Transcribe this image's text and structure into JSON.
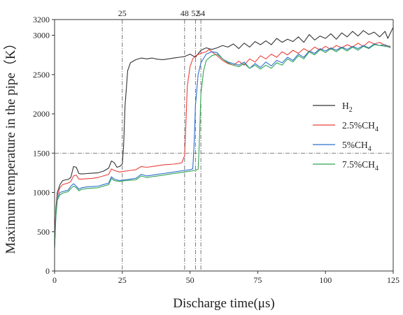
{
  "chart_data": {
    "type": "line",
    "title": "",
    "xlabel": "Discharge time(μs)",
    "ylabel": "Maximum temperature in the pipe（K）",
    "xlim": [
      0,
      125
    ],
    "ylim": [
      0,
      3200
    ],
    "xticks": [
      0,
      25,
      50,
      75,
      100,
      125
    ],
    "yticks": [
      0,
      500,
      1000,
      1500,
      2000,
      2500,
      3000,
      3200
    ],
    "grid": false,
    "legend_position": "right",
    "reference_lines": {
      "vertical": [
        {
          "x": 25,
          "label": "25"
        },
        {
          "x": 48,
          "label": "48"
        },
        {
          "x": 52,
          "label": "52"
        },
        {
          "x": 54,
          "label": "54"
        }
      ],
      "horizontal": [
        {
          "y": 1500
        }
      ]
    },
    "series": [
      {
        "name": "H2",
        "name_base": "H",
        "name_sub": "2",
        "color": "#333333",
        "points": [
          [
            0,
            380
          ],
          [
            0.5,
            800
          ],
          [
            1,
            1000
          ],
          [
            2,
            1100
          ],
          [
            3,
            1150
          ],
          [
            4,
            1160
          ],
          [
            5,
            1165
          ],
          [
            6,
            1190
          ],
          [
            7,
            1330
          ],
          [
            8,
            1320
          ],
          [
            9,
            1240
          ],
          [
            10,
            1235
          ],
          [
            12,
            1240
          ],
          [
            14,
            1245
          ],
          [
            16,
            1250
          ],
          [
            18,
            1270
          ],
          [
            20,
            1310
          ],
          [
            21,
            1400
          ],
          [
            22,
            1380
          ],
          [
            23,
            1320
          ],
          [
            24,
            1330
          ],
          [
            25,
            1360
          ],
          [
            25.5,
            1600
          ],
          [
            26,
            2100
          ],
          [
            27,
            2550
          ],
          [
            28,
            2650
          ],
          [
            30,
            2690
          ],
          [
            32,
            2710
          ],
          [
            34,
            2700
          ],
          [
            36,
            2710
          ],
          [
            38,
            2695
          ],
          [
            40,
            2690
          ],
          [
            42,
            2700
          ],
          [
            44,
            2710
          ],
          [
            46,
            2720
          ],
          [
            48,
            2730
          ],
          [
            50,
            2760
          ],
          [
            52,
            2720
          ],
          [
            54,
            2810
          ],
          [
            56,
            2840
          ],
          [
            58,
            2820
          ],
          [
            60,
            2840
          ],
          [
            62,
            2870
          ],
          [
            64,
            2850
          ],
          [
            66,
            2890
          ],
          [
            68,
            2830
          ],
          [
            70,
            2900
          ],
          [
            72,
            2850
          ],
          [
            74,
            2920
          ],
          [
            76,
            2880
          ],
          [
            78,
            2930
          ],
          [
            80,
            2880
          ],
          [
            82,
            2960
          ],
          [
            84,
            2910
          ],
          [
            86,
            2950
          ],
          [
            88,
            2920
          ],
          [
            90,
            2980
          ],
          [
            92,
            2910
          ],
          [
            94,
            3010
          ],
          [
            96,
            2940
          ],
          [
            98,
            2990
          ],
          [
            100,
            2960
          ],
          [
            102,
            3020
          ],
          [
            104,
            2950
          ],
          [
            106,
            3030
          ],
          [
            108,
            2980
          ],
          [
            110,
            3050
          ],
          [
            112,
            2990
          ],
          [
            114,
            3060
          ],
          [
            116,
            3010
          ],
          [
            118,
            3040
          ],
          [
            120,
            2980
          ],
          [
            122,
            3050
          ],
          [
            123,
            2960
          ],
          [
            124,
            3030
          ],
          [
            125,
            3100
          ]
        ]
      },
      {
        "name": "2.5%CH4",
        "name_base": "2.5%CH",
        "name_sub": "4",
        "color": "#e8403a",
        "points": [
          [
            0,
            320
          ],
          [
            0.5,
            760
          ],
          [
            1,
            960
          ],
          [
            2,
            1060
          ],
          [
            3,
            1100
          ],
          [
            4,
            1110
          ],
          [
            5,
            1120
          ],
          [
            6,
            1140
          ],
          [
            7,
            1210
          ],
          [
            8,
            1220
          ],
          [
            9,
            1170
          ],
          [
            10,
            1170
          ],
          [
            12,
            1175
          ],
          [
            14,
            1180
          ],
          [
            16,
            1190
          ],
          [
            18,
            1210
          ],
          [
            20,
            1230
          ],
          [
            21,
            1300
          ],
          [
            22,
            1280
          ],
          [
            24,
            1260
          ],
          [
            26,
            1270
          ],
          [
            28,
            1280
          ],
          [
            30,
            1290
          ],
          [
            32,
            1330
          ],
          [
            34,
            1320
          ],
          [
            36,
            1330
          ],
          [
            38,
            1340
          ],
          [
            40,
            1350
          ],
          [
            42,
            1355
          ],
          [
            44,
            1360
          ],
          [
            46,
            1370
          ],
          [
            47,
            1380
          ],
          [
            48,
            1470
          ],
          [
            48.5,
            1900
          ],
          [
            49,
            2350
          ],
          [
            50,
            2600
          ],
          [
            51,
            2700
          ],
          [
            52,
            2740
          ],
          [
            54,
            2770
          ],
          [
            56,
            2790
          ],
          [
            57,
            2820
          ],
          [
            58,
            2790
          ],
          [
            60,
            2740
          ],
          [
            62,
            2680
          ],
          [
            64,
            2640
          ],
          [
            66,
            2620
          ],
          [
            68,
            2670
          ],
          [
            70,
            2620
          ],
          [
            72,
            2700
          ],
          [
            74,
            2660
          ],
          [
            76,
            2740
          ],
          [
            78,
            2700
          ],
          [
            80,
            2760
          ],
          [
            82,
            2720
          ],
          [
            84,
            2790
          ],
          [
            86,
            2750
          ],
          [
            88,
            2810
          ],
          [
            90,
            2770
          ],
          [
            92,
            2830
          ],
          [
            94,
            2790
          ],
          [
            96,
            2850
          ],
          [
            98,
            2810
          ],
          [
            100,
            2860
          ],
          [
            102,
            2820
          ],
          [
            104,
            2870
          ],
          [
            106,
            2840
          ],
          [
            108,
            2880
          ],
          [
            110,
            2850
          ],
          [
            112,
            2900
          ],
          [
            114,
            2860
          ],
          [
            116,
            2920
          ],
          [
            118,
            2890
          ],
          [
            120,
            2910
          ],
          [
            122,
            2870
          ],
          [
            124,
            2860
          ]
        ]
      },
      {
        "name": "5%CH4",
        "name_base": "5%CH",
        "name_sub": "4",
        "color": "#2d6fce",
        "points": [
          [
            0,
            300
          ],
          [
            0.5,
            720
          ],
          [
            1,
            930
          ],
          [
            2,
            1000
          ],
          [
            3,
            1010
          ],
          [
            4,
            1020
          ],
          [
            5,
            1030
          ],
          [
            6,
            1080
          ],
          [
            7,
            1110
          ],
          [
            8,
            1080
          ],
          [
            9,
            1040
          ],
          [
            10,
            1060
          ],
          [
            12,
            1070
          ],
          [
            14,
            1075
          ],
          [
            16,
            1080
          ],
          [
            18,
            1100
          ],
          [
            20,
            1120
          ],
          [
            21,
            1200
          ],
          [
            22,
            1170
          ],
          [
            24,
            1150
          ],
          [
            26,
            1160
          ],
          [
            28,
            1170
          ],
          [
            30,
            1180
          ],
          [
            32,
            1230
          ],
          [
            34,
            1210
          ],
          [
            36,
            1220
          ],
          [
            38,
            1230
          ],
          [
            40,
            1240
          ],
          [
            42,
            1250
          ],
          [
            44,
            1260
          ],
          [
            46,
            1270
          ],
          [
            48,
            1280
          ],
          [
            50,
            1290
          ],
          [
            51,
            1300
          ],
          [
            51.5,
            1600
          ],
          [
            52,
            2100
          ],
          [
            53,
            2500
          ],
          [
            54,
            2650
          ],
          [
            56,
            2760
          ],
          [
            58,
            2790
          ],
          [
            60,
            2780
          ],
          [
            62,
            2700
          ],
          [
            64,
            2660
          ],
          [
            66,
            2640
          ],
          [
            68,
            2620
          ],
          [
            70,
            2660
          ],
          [
            72,
            2580
          ],
          [
            74,
            2640
          ],
          [
            76,
            2590
          ],
          [
            78,
            2660
          ],
          [
            80,
            2610
          ],
          [
            82,
            2680
          ],
          [
            84,
            2650
          ],
          [
            86,
            2720
          ],
          [
            88,
            2680
          ],
          [
            90,
            2760
          ],
          [
            92,
            2720
          ],
          [
            94,
            2800
          ],
          [
            96,
            2770
          ],
          [
            98,
            2830
          ],
          [
            100,
            2800
          ],
          [
            102,
            2840
          ],
          [
            104,
            2810
          ],
          [
            106,
            2850
          ],
          [
            108,
            2820
          ],
          [
            110,
            2860
          ],
          [
            112,
            2830
          ],
          [
            114,
            2870
          ],
          [
            116,
            2840
          ],
          [
            118,
            2890
          ],
          [
            120,
            2870
          ],
          [
            122,
            2880
          ],
          [
            124,
            2840
          ]
        ]
      },
      {
        "name": "7.5%CH4",
        "name_base": "7.5%CH",
        "name_sub": "4",
        "color": "#2fa452",
        "points": [
          [
            0,
            290
          ],
          [
            0.5,
            700
          ],
          [
            1,
            900
          ],
          [
            2,
            970
          ],
          [
            3,
            990
          ],
          [
            4,
            1000
          ],
          [
            5,
            1010
          ],
          [
            6,
            1050
          ],
          [
            7,
            1080
          ],
          [
            8,
            1060
          ],
          [
            9,
            1020
          ],
          [
            10,
            1040
          ],
          [
            12,
            1050
          ],
          [
            14,
            1055
          ],
          [
            16,
            1060
          ],
          [
            18,
            1080
          ],
          [
            20,
            1100
          ],
          [
            21,
            1180
          ],
          [
            22,
            1150
          ],
          [
            24,
            1140
          ],
          [
            26,
            1150
          ],
          [
            28,
            1155
          ],
          [
            30,
            1160
          ],
          [
            32,
            1210
          ],
          [
            34,
            1190
          ],
          [
            36,
            1200
          ],
          [
            38,
            1210
          ],
          [
            40,
            1220
          ],
          [
            42,
            1230
          ],
          [
            44,
            1240
          ],
          [
            46,
            1250
          ],
          [
            48,
            1260
          ],
          [
            50,
            1270
          ],
          [
            52,
            1280
          ],
          [
            53,
            1295
          ],
          [
            53.5,
            1700
          ],
          [
            54,
            2250
          ],
          [
            55,
            2550
          ],
          [
            56,
            2680
          ],
          [
            58,
            2740
          ],
          [
            60,
            2760
          ],
          [
            62,
            2700
          ],
          [
            64,
            2650
          ],
          [
            66,
            2620
          ],
          [
            68,
            2600
          ],
          [
            70,
            2640
          ],
          [
            72,
            2580
          ],
          [
            74,
            2620
          ],
          [
            76,
            2570
          ],
          [
            78,
            2620
          ],
          [
            80,
            2580
          ],
          [
            82,
            2650
          ],
          [
            84,
            2620
          ],
          [
            86,
            2700
          ],
          [
            88,
            2660
          ],
          [
            90,
            2740
          ],
          [
            92,
            2700
          ],
          [
            94,
            2790
          ],
          [
            96,
            2750
          ],
          [
            98,
            2820
          ],
          [
            100,
            2780
          ],
          [
            102,
            2830
          ],
          [
            104,
            2790
          ],
          [
            106,
            2840
          ],
          [
            108,
            2800
          ],
          [
            110,
            2850
          ],
          [
            112,
            2810
          ],
          [
            114,
            2860
          ],
          [
            116,
            2830
          ],
          [
            118,
            2880
          ],
          [
            120,
            2870
          ],
          [
            122,
            2860
          ],
          [
            124,
            2850
          ]
        ]
      }
    ]
  }
}
